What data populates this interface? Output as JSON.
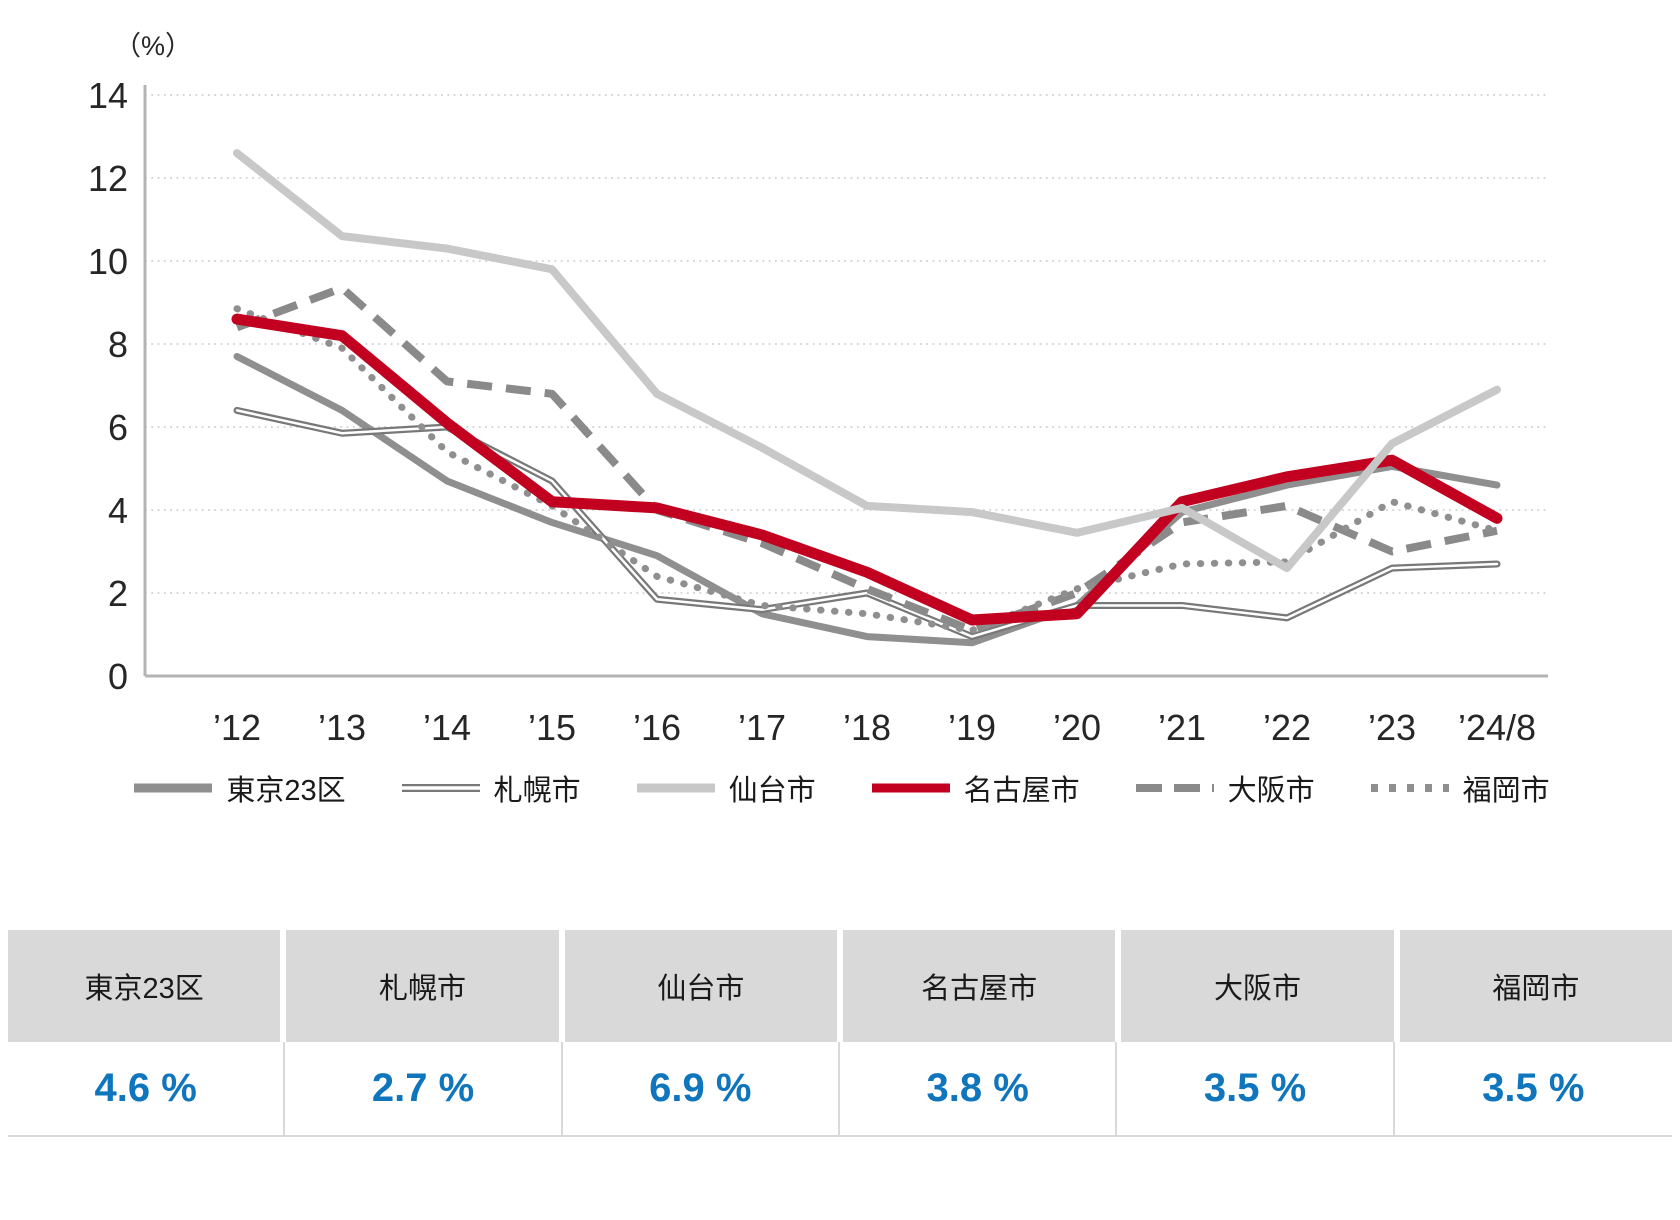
{
  "chart_data": {
    "type": "line",
    "title": "",
    "ylabel": "（%）",
    "x": [
      "’12",
      "’13",
      "’14",
      "’15",
      "’16",
      "’17",
      "’18",
      "’19",
      "’20",
      "’21",
      "’22",
      "’23",
      "’24/8"
    ],
    "ylim": [
      0,
      14
    ],
    "y_tick_step": 2,
    "grid": true,
    "legend_position": "bottom",
    "series": [
      {
        "name": "東京23区",
        "style": "solid",
        "color": "#8f8f8f",
        "width": 7,
        "values": [
          7.7,
          6.4,
          4.7,
          3.7,
          2.9,
          1.5,
          0.95,
          0.8,
          1.7,
          3.95,
          4.6,
          5.05,
          4.6
        ]
      },
      {
        "name": "札幌市",
        "style": "double",
        "color": "#787878",
        "width": 7,
        "values": [
          6.4,
          5.85,
          6.0,
          4.7,
          1.85,
          1.6,
          2.0,
          0.95,
          1.7,
          1.7,
          1.4,
          2.6,
          2.7
        ]
      },
      {
        "name": "大阪市",
        "style": "dashed",
        "color": "#8a8a8a",
        "width": 8,
        "values": [
          8.4,
          9.35,
          7.1,
          6.8,
          4.0,
          3.2,
          2.1,
          1.1,
          2.0,
          3.7,
          4.1,
          3.0,
          3.5
        ]
      },
      {
        "name": "福岡市",
        "style": "dotted",
        "color": "#8f8f8f",
        "width": 7,
        "values": [
          8.85,
          7.9,
          5.4,
          4.1,
          2.4,
          1.7,
          1.5,
          1.1,
          2.1,
          2.7,
          2.75,
          4.2,
          3.5
        ]
      },
      {
        "name": "名古屋市",
        "style": "solid",
        "color": "#c2001f",
        "width": 11,
        "values": [
          8.6,
          8.2,
          6.1,
          4.2,
          4.05,
          3.4,
          2.5,
          1.35,
          1.5,
          4.2,
          4.8,
          5.2,
          3.8
        ]
      },
      {
        "name": "仙台市",
        "style": "solid",
        "color": "#c8c8c8",
        "width": 8,
        "values": [
          12.6,
          10.6,
          10.3,
          9.8,
          6.8,
          5.5,
          4.1,
          3.95,
          3.45,
          4.05,
          2.6,
          5.6,
          6.9
        ]
      }
    ]
  },
  "legend": {
    "order": [
      "東京23区",
      "札幌市",
      "仙台市",
      "名古屋市",
      "大阪市",
      "福岡市"
    ]
  },
  "table": {
    "value_color": "#0f75bc",
    "columns": [
      {
        "label": "東京23区",
        "value": "4.6 %"
      },
      {
        "label": "札幌市",
        "value": "2.7 %"
      },
      {
        "label": "仙台市",
        "value": "6.9 %"
      },
      {
        "label": "名古屋市",
        "value": "3.8 %"
      },
      {
        "label": "大阪市",
        "value": "3.5 %"
      },
      {
        "label": "福岡市",
        "value": "3.5 %"
      }
    ]
  }
}
